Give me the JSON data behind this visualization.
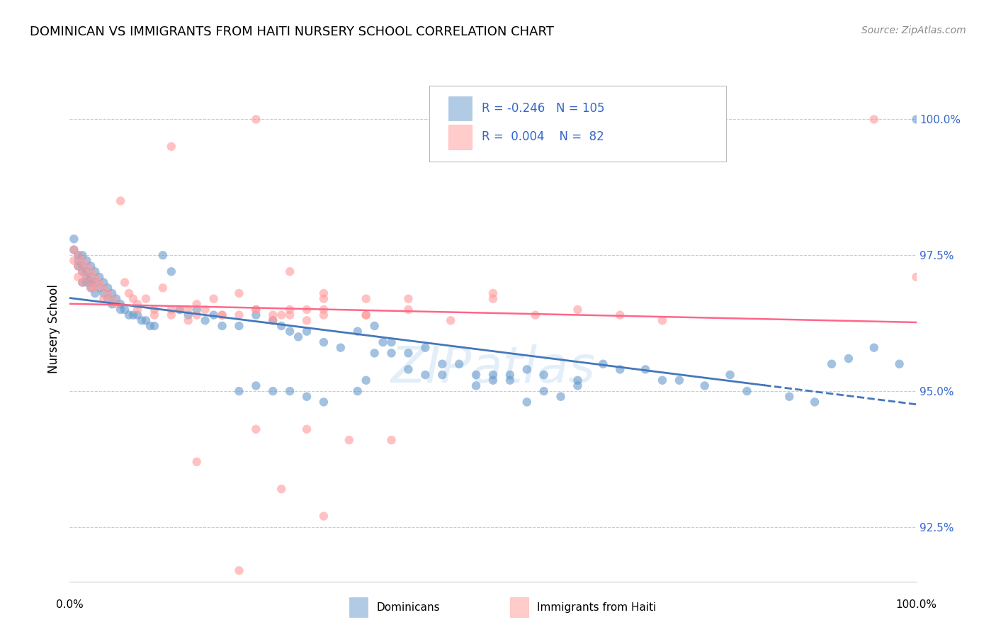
{
  "title": "DOMINICAN VS IMMIGRANTS FROM HAITI NURSERY SCHOOL CORRELATION CHART",
  "source": "Source: ZipAtlas.com",
  "ylabel": "Nursery School",
  "yticks": [
    92.5,
    95.0,
    97.5,
    100.0
  ],
  "ytick_labels": [
    "92.5%",
    "95.0%",
    "97.5%",
    "100.0%"
  ],
  "xlim": [
    0.0,
    1.0
  ],
  "ylim": [
    91.5,
    100.8
  ],
  "blue_color": "#6699CC",
  "pink_color": "#FF9999",
  "trendline_blue": "#4477BB",
  "trendline_pink": "#FF6688",
  "legend_R_blue": "-0.246",
  "legend_N_blue": "105",
  "legend_R_pink": "0.004",
  "legend_N_pink": "82",
  "legend_label_blue": "Dominicans",
  "legend_label_pink": "Immigrants from Haiti",
  "watermark": "ZIPatlas",
  "blue_x": [
    0.005,
    0.005,
    0.01,
    0.01,
    0.01,
    0.015,
    0.015,
    0.015,
    0.015,
    0.02,
    0.02,
    0.02,
    0.02,
    0.025,
    0.025,
    0.025,
    0.025,
    0.03,
    0.03,
    0.03,
    0.035,
    0.035,
    0.04,
    0.04,
    0.045,
    0.045,
    0.05,
    0.05,
    0.055,
    0.06,
    0.06,
    0.065,
    0.07,
    0.075,
    0.08,
    0.085,
    0.09,
    0.095,
    0.1,
    0.11,
    0.12,
    0.13,
    0.14,
    0.15,
    0.16,
    0.17,
    0.18,
    0.2,
    0.22,
    0.24,
    0.25,
    0.26,
    0.27,
    0.28,
    0.3,
    0.32,
    0.34,
    0.36,
    0.38,
    0.4,
    0.42,
    0.44,
    0.46,
    0.48,
    0.5,
    0.52,
    0.54,
    0.56,
    0.6,
    0.65,
    0.7,
    0.75,
    0.8,
    0.85,
    0.88,
    0.9,
    0.92,
    0.95,
    0.98,
    1.0,
    0.2,
    0.22,
    0.24,
    0.26,
    0.28,
    0.3,
    0.34,
    0.35,
    0.36,
    0.37,
    0.38,
    0.4,
    0.42,
    0.44,
    0.48,
    0.5,
    0.52,
    0.54,
    0.56,
    0.58,
    0.6,
    0.63,
    0.68,
    0.72,
    0.78
  ],
  "blue_y": [
    97.8,
    97.6,
    97.5,
    97.4,
    97.3,
    97.5,
    97.3,
    97.2,
    97.0,
    97.4,
    97.2,
    97.1,
    97.0,
    97.3,
    97.1,
    97.0,
    96.9,
    97.2,
    97.0,
    96.8,
    97.1,
    96.9,
    97.0,
    96.8,
    96.9,
    96.7,
    96.8,
    96.6,
    96.7,
    96.6,
    96.5,
    96.5,
    96.4,
    96.4,
    96.4,
    96.3,
    96.3,
    96.2,
    96.2,
    97.5,
    97.2,
    96.5,
    96.4,
    96.5,
    96.3,
    96.4,
    96.2,
    96.2,
    96.4,
    96.3,
    96.2,
    96.1,
    96.0,
    96.1,
    95.9,
    95.8,
    96.1,
    95.7,
    95.9,
    95.7,
    95.8,
    95.5,
    95.5,
    95.3,
    95.3,
    95.2,
    95.4,
    95.3,
    95.2,
    95.4,
    95.2,
    95.1,
    95.0,
    94.9,
    94.8,
    95.5,
    95.6,
    95.8,
    95.5,
    100.0,
    95.0,
    95.1,
    95.0,
    95.0,
    94.9,
    94.8,
    95.0,
    95.2,
    96.2,
    95.9,
    95.7,
    95.4,
    95.3,
    95.3,
    95.1,
    95.2,
    95.3,
    94.8,
    95.0,
    94.9,
    95.1,
    95.5,
    95.4,
    95.2,
    95.3
  ],
  "pink_x": [
    0.005,
    0.005,
    0.01,
    0.01,
    0.01,
    0.015,
    0.015,
    0.015,
    0.02,
    0.02,
    0.025,
    0.025,
    0.025,
    0.03,
    0.03,
    0.035,
    0.04,
    0.04,
    0.045,
    0.05,
    0.055,
    0.06,
    0.065,
    0.07,
    0.075,
    0.08,
    0.09,
    0.1,
    0.11,
    0.12,
    0.13,
    0.14,
    0.15,
    0.17,
    0.2,
    0.22,
    0.24,
    0.26,
    0.28,
    0.3,
    0.35,
    0.4,
    0.45,
    0.5,
    0.55,
    0.6,
    0.65,
    0.7,
    0.08,
    0.1,
    0.12,
    0.14,
    0.16,
    0.18,
    0.2,
    0.22,
    0.24,
    0.26,
    0.28,
    0.3,
    0.15,
    0.25,
    0.3,
    0.35,
    0.15,
    0.2,
    0.25,
    0.3,
    0.12,
    0.18,
    0.22,
    0.26,
    0.3,
    0.35,
    0.4,
    0.5,
    0.22,
    0.28,
    0.33,
    0.38,
    0.95,
    1.0
  ],
  "pink_y": [
    97.6,
    97.4,
    97.5,
    97.3,
    97.1,
    97.4,
    97.2,
    97.0,
    97.3,
    97.1,
    97.2,
    97.0,
    96.9,
    97.1,
    96.9,
    97.0,
    96.9,
    96.7,
    96.8,
    96.7,
    96.6,
    98.5,
    97.0,
    96.8,
    96.7,
    96.6,
    96.7,
    96.5,
    96.9,
    96.4,
    96.5,
    96.3,
    96.6,
    96.7,
    96.4,
    96.5,
    96.3,
    96.4,
    96.3,
    96.8,
    96.4,
    96.5,
    96.3,
    96.8,
    96.4,
    96.5,
    96.4,
    96.3,
    96.5,
    96.4,
    96.5,
    96.5,
    96.5,
    96.4,
    96.8,
    96.5,
    96.4,
    96.5,
    96.5,
    96.5,
    96.4,
    96.4,
    96.4,
    96.4,
    93.7,
    91.7,
    93.2,
    92.7,
    99.5,
    96.4,
    100.0,
    97.2,
    96.7,
    96.7,
    96.7,
    96.7,
    94.3,
    94.3,
    94.1,
    94.1,
    100.0,
    97.1
  ]
}
